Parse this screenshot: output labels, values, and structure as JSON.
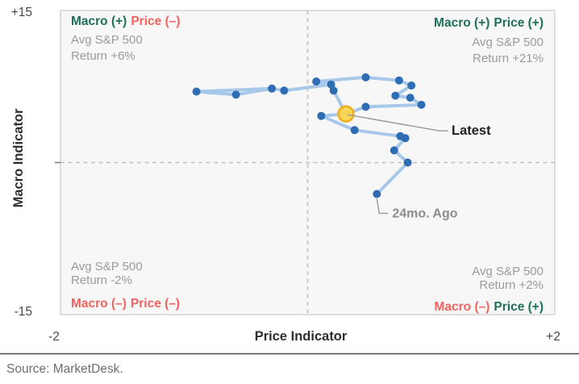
{
  "source": {
    "text": "Source: MarketDesk."
  },
  "chart_data": {
    "type": "connected_scatter",
    "title": "",
    "xlabel": "Price Indicator",
    "ylabel": "Macro Indicator",
    "xlim": [
      -2,
      2
    ],
    "ylim": [
      -15,
      15
    ],
    "grid": "center dashed crosshair dividing four quadrants",
    "legend_position": "none",
    "x_ticks": [
      {
        "value": -2,
        "label": "-2"
      },
      {
        "value": 2,
        "label": "+2"
      }
    ],
    "y_ticks": [
      {
        "value": 15,
        "label": "+15"
      },
      {
        "value": -15,
        "label": "-15"
      }
    ],
    "quadrants": {
      "top_left": {
        "macro": "Macro (+)",
        "price": "Price (–)",
        "sub1": "Avg S&P 500",
        "sub2": "Return +6%"
      },
      "top_right": {
        "macro": "Macro (+)",
        "price": "Price (+)",
        "sub1": "Avg S&P 500",
        "sub2": "Return +21%"
      },
      "bottom_left": {
        "macro": "Macro (–)",
        "price": "Price (–)",
        "sub1": "Avg S&P 500",
        "sub2": "Return -2%"
      },
      "bottom_right": {
        "macro": "Macro (–)",
        "price": "Price (+)",
        "sub1": "Avg S&P 500",
        "sub2": "Return +2%"
      }
    },
    "annotations": {
      "latest_label": "Latest",
      "start_label": "24mo. Ago"
    },
    "series": {
      "latest_point": [
        0.31,
        4.8
      ],
      "start_point": [
        0.56,
        -3.1
      ],
      "chains": [
        {
          "name": "upper-trail",
          "points": [
            [
              -0.9,
              7.0
            ],
            [
              -0.58,
              6.7
            ],
            [
              -0.29,
              7.3
            ],
            [
              -0.19,
              7.1
            ],
            [
              0.19,
              7.7
            ],
            [
              0.07,
              8.0
            ],
            [
              0.47,
              8.4
            ],
            [
              0.74,
              8.1
            ],
            [
              0.84,
              7.6
            ],
            [
              0.71,
              6.6
            ],
            [
              0.83,
              6.4
            ],
            [
              0.92,
              5.7
            ],
            [
              0.47,
              5.5
            ],
            [
              0.31,
              4.8
            ]
          ]
        },
        {
          "name": "cluster-spur",
          "points": [
            [
              0.21,
              7.1
            ],
            [
              0.31,
              4.8
            ]
          ]
        },
        {
          "name": "overlap-return",
          "points": [
            [
              -0.9,
              7.0
            ],
            [
              -0.29,
              7.3
            ]
          ]
        },
        {
          "name": "lower-trail",
          "points": [
            [
              0.56,
              -3.1
            ],
            [
              0.81,
              0.0
            ],
            [
              0.7,
              1.2
            ],
            [
              0.79,
              2.4
            ],
            [
              0.75,
              2.6
            ],
            [
              0.38,
              3.2
            ],
            [
              0.11,
              4.6
            ],
            [
              0.31,
              4.8
            ]
          ]
        }
      ]
    },
    "colors": {
      "dot": "#2E6DB4",
      "line": "#A7C8E9",
      "latest_fill": "#F9D457",
      "latest_stroke": "#EDAE1F",
      "green": "#1E6F5B",
      "red": "#F2635F",
      "gray_text": "#9B9B9B"
    }
  }
}
